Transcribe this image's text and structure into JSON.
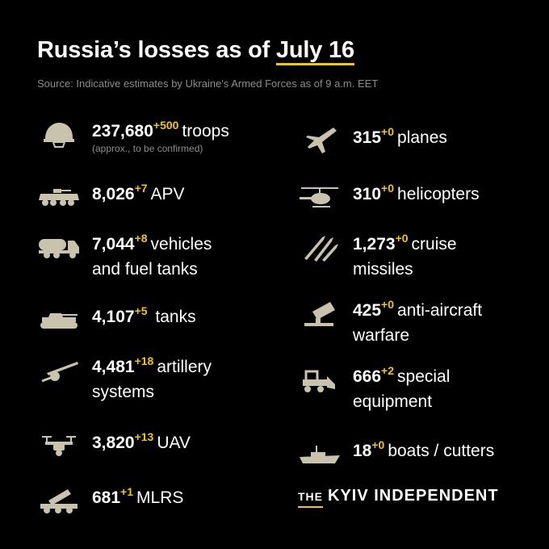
{
  "header": {
    "title_main": "Russia’s losses as of",
    "title_date": "July 16",
    "source": "Source: Indicative estimates by Ukraine's Armed Forces as of 9 a.m. EET"
  },
  "colors": {
    "accent": "#f0c419",
    "icon": "#c9c3ad",
    "muted": "#8c8c8c"
  },
  "left": [
    {
      "icon": "helmet-icon",
      "value": "237,680",
      "delta": "+500",
      "line1": "troops",
      "note": "(approx., to be confirmed)"
    },
    {
      "icon": "apv-icon",
      "value": "8,026",
      "delta": "+7",
      "line1": "APV"
    },
    {
      "icon": "fuel-truck-icon",
      "value": "7,044",
      "delta": "+8",
      "line1": "vehicles",
      "line2": "and fuel tanks"
    },
    {
      "icon": "tank-icon",
      "value": "4,107",
      "delta": "+5",
      "line1": "tanks"
    },
    {
      "icon": "artillery-icon",
      "value": "4,481",
      "delta": "+18",
      "line1": "artillery",
      "line2": "systems"
    },
    {
      "icon": "drone-icon",
      "value": "3,820",
      "delta": "+13",
      "line1": "UAV"
    },
    {
      "icon": "mlrs-icon",
      "value": "681",
      "delta": "+1",
      "line1": "MLRS"
    }
  ],
  "right": [
    {
      "icon": "plane-icon",
      "value": "315",
      "delta": "+0",
      "line1": "planes"
    },
    {
      "icon": "helicopter-icon",
      "value": "310",
      "delta": "+0",
      "line1": "helicopters"
    },
    {
      "icon": "missile-icon",
      "value": "1,273",
      "delta": "+0",
      "line1": "cruise",
      "line2": "missiles"
    },
    {
      "icon": "anti-aircraft-icon",
      "value": "425",
      "delta": "+0",
      "line1": "anti-aircraft",
      "line2": "warfare"
    },
    {
      "icon": "bulldozer-icon",
      "value": "666",
      "delta": "+2",
      "line1": "special",
      "line2": "equipment"
    },
    {
      "icon": "boat-icon",
      "value": "18",
      "delta": "+0",
      "line1": "boats / cutters"
    }
  ],
  "logo": {
    "the": "THE",
    "name": "KYIV INDEPENDENT"
  }
}
